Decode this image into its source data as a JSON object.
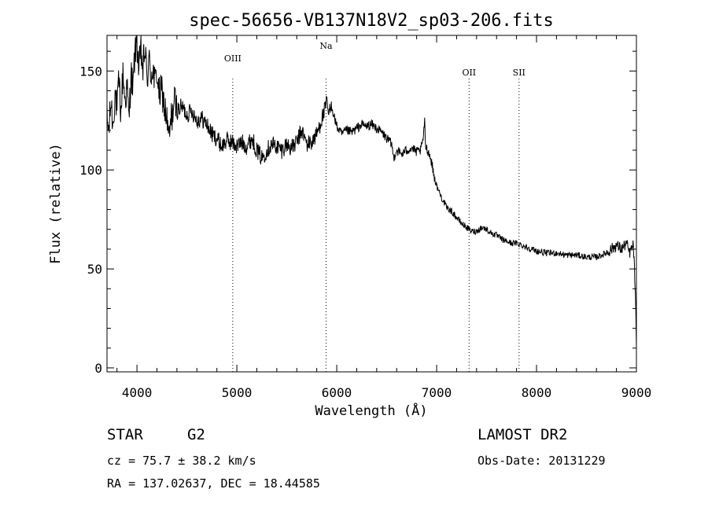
{
  "chart_data": {
    "type": "line",
    "title": "spec-56656-VB137N18V2_sp03-206.fits",
    "xlabel": "Wavelength (Å)",
    "ylabel": "Flux (relative)",
    "xlim": [
      3700,
      9000
    ],
    "ylim": [
      -2,
      168
    ],
    "x_ticks": [
      4000,
      5000,
      6000,
      7000,
      8000,
      9000
    ],
    "y_ticks": [
      0,
      50,
      100,
      150
    ],
    "x_tick_labels": [
      "4000",
      "5000",
      "6000",
      "7000",
      "8000",
      "9000"
    ],
    "y_tick_labels": [
      "0",
      "50",
      "100",
      "150"
    ],
    "line_markers": [
      {
        "label": "OIII",
        "x": 4959
      },
      {
        "label": "Na",
        "x": 5893
      },
      {
        "label": "OII",
        "x": 7325
      },
      {
        "label": "SII",
        "x": 7825
      }
    ],
    "series": [
      {
        "color": "#000000",
        "anchors": [
          [
            3700,
            125
          ],
          [
            3720,
            120
          ],
          [
            3740,
            135
          ],
          [
            3760,
            122
          ],
          [
            3780,
            140
          ],
          [
            3800,
            130
          ],
          [
            3820,
            145
          ],
          [
            3840,
            128
          ],
          [
            3860,
            150
          ],
          [
            3880,
            135
          ],
          [
            3900,
            142
          ],
          [
            3920,
            125
          ],
          [
            3940,
            150
          ],
          [
            3960,
            140
          ],
          [
            3980,
            160
          ],
          [
            4000,
            165
          ],
          [
            4020,
            150
          ],
          [
            4040,
            160
          ],
          [
            4060,
            150
          ],
          [
            4080,
            162
          ],
          [
            4100,
            145
          ],
          [
            4120,
            155
          ],
          [
            4140,
            148
          ],
          [
            4160,
            152
          ],
          [
            4180,
            143
          ],
          [
            4200,
            150
          ],
          [
            4220,
            138
          ],
          [
            4250,
            140
          ],
          [
            4280,
            130
          ],
          [
            4300,
            125
          ],
          [
            4320,
            115
          ],
          [
            4340,
            125
          ],
          [
            4360,
            130
          ],
          [
            4380,
            135
          ],
          [
            4400,
            130
          ],
          [
            4450,
            132
          ],
          [
            4500,
            128
          ],
          [
            4550,
            130
          ],
          [
            4600,
            125
          ],
          [
            4650,
            126
          ],
          [
            4700,
            123
          ],
          [
            4750,
            118
          ],
          [
            4800,
            116
          ],
          [
            4850,
            112
          ],
          [
            4900,
            115
          ],
          [
            4950,
            114
          ],
          [
            5000,
            112
          ],
          [
            5050,
            114
          ],
          [
            5100,
            112
          ],
          [
            5150,
            116
          ],
          [
            5200,
            110
          ],
          [
            5250,
            106
          ],
          [
            5300,
            110
          ],
          [
            5350,
            113
          ],
          [
            5400,
            112
          ],
          [
            5450,
            110
          ],
          [
            5500,
            113
          ],
          [
            5550,
            111
          ],
          [
            5600,
            114
          ],
          [
            5650,
            120
          ],
          [
            5700,
            113
          ],
          [
            5750,
            114
          ],
          [
            5800,
            118
          ],
          [
            5850,
            126
          ],
          [
            5880,
            130
          ],
          [
            5900,
            134
          ],
          [
            5920,
            128
          ],
          [
            5950,
            132
          ],
          [
            6000,
            122
          ],
          [
            6050,
            118
          ],
          [
            6100,
            120
          ],
          [
            6150,
            119
          ],
          [
            6200,
            121
          ],
          [
            6250,
            123
          ],
          [
            6300,
            122
          ],
          [
            6350,
            123
          ],
          [
            6400,
            121
          ],
          [
            6450,
            119
          ],
          [
            6500,
            116
          ],
          [
            6550,
            113
          ],
          [
            6570,
            106
          ],
          [
            6600,
            110
          ],
          [
            6650,
            108
          ],
          [
            6700,
            110
          ],
          [
            6750,
            111
          ],
          [
            6800,
            109
          ],
          [
            6840,
            110
          ],
          [
            6860,
            114
          ],
          [
            6880,
            124
          ],
          [
            6890,
            112
          ],
          [
            6920,
            109
          ],
          [
            6950,
            104
          ],
          [
            6970,
            98
          ],
          [
            7000,
            92
          ],
          [
            7050,
            86
          ],
          [
            7100,
            81
          ],
          [
            7150,
            79
          ],
          [
            7200,
            76
          ],
          [
            7250,
            73
          ],
          [
            7300,
            71
          ],
          [
            7350,
            69
          ],
          [
            7400,
            69
          ],
          [
            7450,
            71
          ],
          [
            7500,
            70
          ],
          [
            7550,
            68
          ],
          [
            7600,
            67
          ],
          [
            7650,
            65
          ],
          [
            7700,
            64
          ],
          [
            7750,
            63
          ],
          [
            7800,
            63
          ],
          [
            7850,
            62
          ],
          [
            7900,
            61
          ],
          [
            7950,
            60
          ],
          [
            8000,
            59
          ],
          [
            8100,
            58
          ],
          [
            8200,
            58
          ],
          [
            8300,
            57
          ],
          [
            8400,
            57
          ],
          [
            8500,
            56
          ],
          [
            8600,
            56
          ],
          [
            8700,
            58
          ],
          [
            8750,
            60
          ],
          [
            8800,
            62
          ],
          [
            8850,
            60
          ],
          [
            8900,
            63
          ],
          [
            8930,
            58
          ],
          [
            8950,
            60
          ],
          [
            8970,
            62
          ],
          [
            8980,
            50
          ],
          [
            8990,
            35
          ],
          [
            9000,
            10
          ]
        ]
      }
    ]
  },
  "info": {
    "object_class": "STAR",
    "subclass": "G2",
    "survey": "LAMOST DR2",
    "redshift": "cz = 75.7 ± 38.2 km/s",
    "obs_date": "Obs-Date: 20131229",
    "coords": "RA = 137.02637, DEC =  18.44585"
  }
}
